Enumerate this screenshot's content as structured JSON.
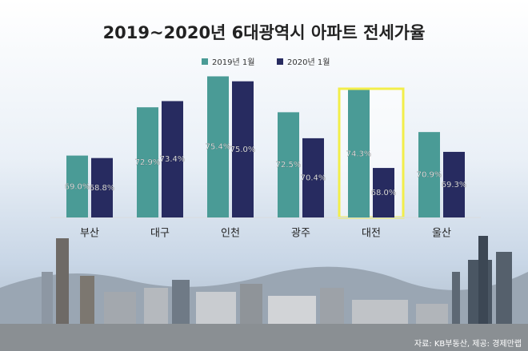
{
  "chart_data": {
    "type": "bar",
    "title": "2019~2020년 6대광역시 아파트 전세가율",
    "categories": [
      "부산",
      "대구",
      "인천",
      "광주",
      "대전",
      "울산"
    ],
    "series": [
      {
        "name": "2019년 1월",
        "color": "#4a9b96",
        "values": [
          69.0,
          72.9,
          75.4,
          72.5,
          74.3,
          70.9
        ],
        "value_labels": [
          "69.0%",
          "72.9%",
          "75.4%",
          "72.5%",
          "74.3%",
          "70.9%"
        ]
      },
      {
        "name": "2020년 1월",
        "color": "#272b60",
        "values": [
          68.8,
          73.4,
          75.0,
          70.4,
          68.0,
          69.3
        ],
        "value_labels": [
          "68.8%",
          "73.4%",
          "75.0%",
          "70.4%",
          "68.0%",
          "69.3%"
        ]
      }
    ],
    "ylim": [
      64,
      76.4
    ],
    "highlight": 4,
    "source": "자료: KB부동산, 제공: 경제만랩"
  }
}
